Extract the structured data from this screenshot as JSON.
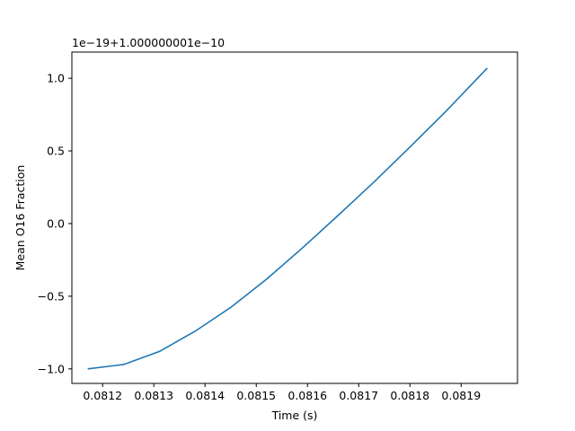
{
  "chart_data": {
    "type": "line",
    "title": "",
    "xlabel": "Time (s)",
    "ylabel": "Mean O16 Fraction",
    "y_offset_label": "1e−19+1.000000001e−10",
    "xlim": [
      0.08114,
      0.08201
    ],
    "ylim": [
      -1.1,
      1.18
    ],
    "x_ticks": [
      0.0812,
      0.0813,
      0.0814,
      0.0815,
      0.0816,
      0.0817,
      0.0818,
      0.0819
    ],
    "x_tick_labels": [
      "0.0812",
      "0.0813",
      "0.0814",
      "0.0815",
      "0.0816",
      "0.0817",
      "0.0818",
      "0.0819"
    ],
    "y_ticks": [
      -1.0,
      -0.5,
      0.0,
      0.5,
      1.0
    ],
    "y_tick_labels": [
      "−1.0",
      "−0.5",
      "0.0",
      "0.5",
      "1.0"
    ],
    "grid": false,
    "series": [
      {
        "color": "#1f77b4",
        "x": [
          0.081171,
          0.081241,
          0.081311,
          0.081381,
          0.081451,
          0.081521,
          0.081591,
          0.081661,
          0.081731,
          0.081801,
          0.081871,
          0.081951
        ],
        "y": [
          -1.0,
          -0.97,
          -0.88,
          -0.74,
          -0.575,
          -0.38,
          -0.165,
          0.06,
          0.29,
          0.53,
          0.775,
          1.07
        ]
      }
    ]
  }
}
